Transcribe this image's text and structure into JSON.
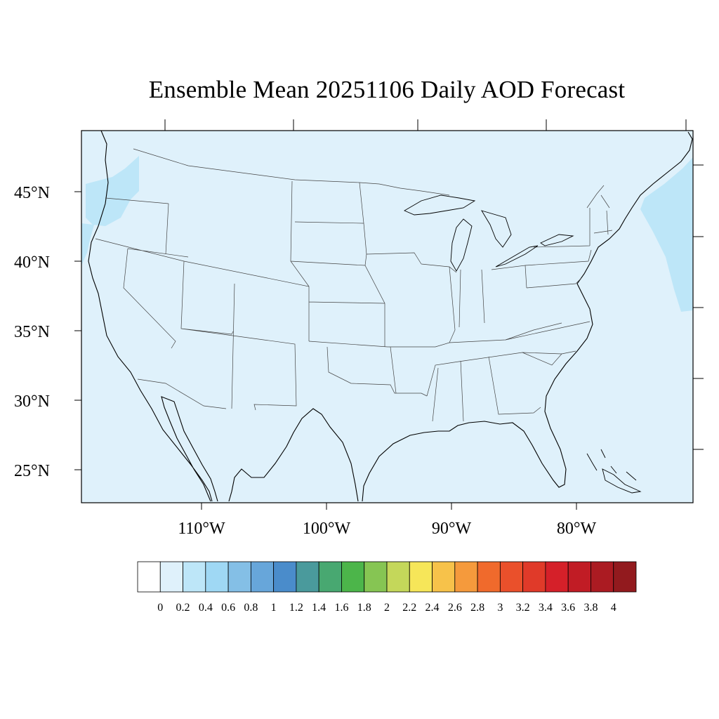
{
  "title": "Ensemble Mean 20251106 Daily AOD Forecast",
  "map": {
    "background_color": "#dff1fb",
    "lat_labels": [
      "45°N",
      "40°N",
      "35°N",
      "30°N",
      "25°N"
    ],
    "lon_labels": [
      "110°W",
      "100°W",
      "90°W",
      "80°W"
    ]
  },
  "colorbar": {
    "colors": [
      "#ffffff",
      "#dff1fb",
      "#bde6f8",
      "#9fd8f4",
      "#84bfe6",
      "#67a6da",
      "#4a8ccb",
      "#4a9a9c",
      "#48a871",
      "#4cb54a",
      "#86c553",
      "#c4d75a",
      "#f6e659",
      "#f7c24a",
      "#f59a3c",
      "#f06a2c",
      "#ea502b",
      "#e03a29",
      "#d52029",
      "#c11c25",
      "#ab1b22",
      "#921a1e"
    ],
    "tick_labels": [
      "0",
      "0.2",
      "0.4",
      "0.6",
      "0.8",
      "1",
      "1.2",
      "1.4",
      "1.6",
      "1.8",
      "2",
      "2.2",
      "2.4",
      "2.6",
      "2.8",
      "3",
      "3.2",
      "3.4",
      "3.6",
      "3.8",
      "4"
    ]
  }
}
